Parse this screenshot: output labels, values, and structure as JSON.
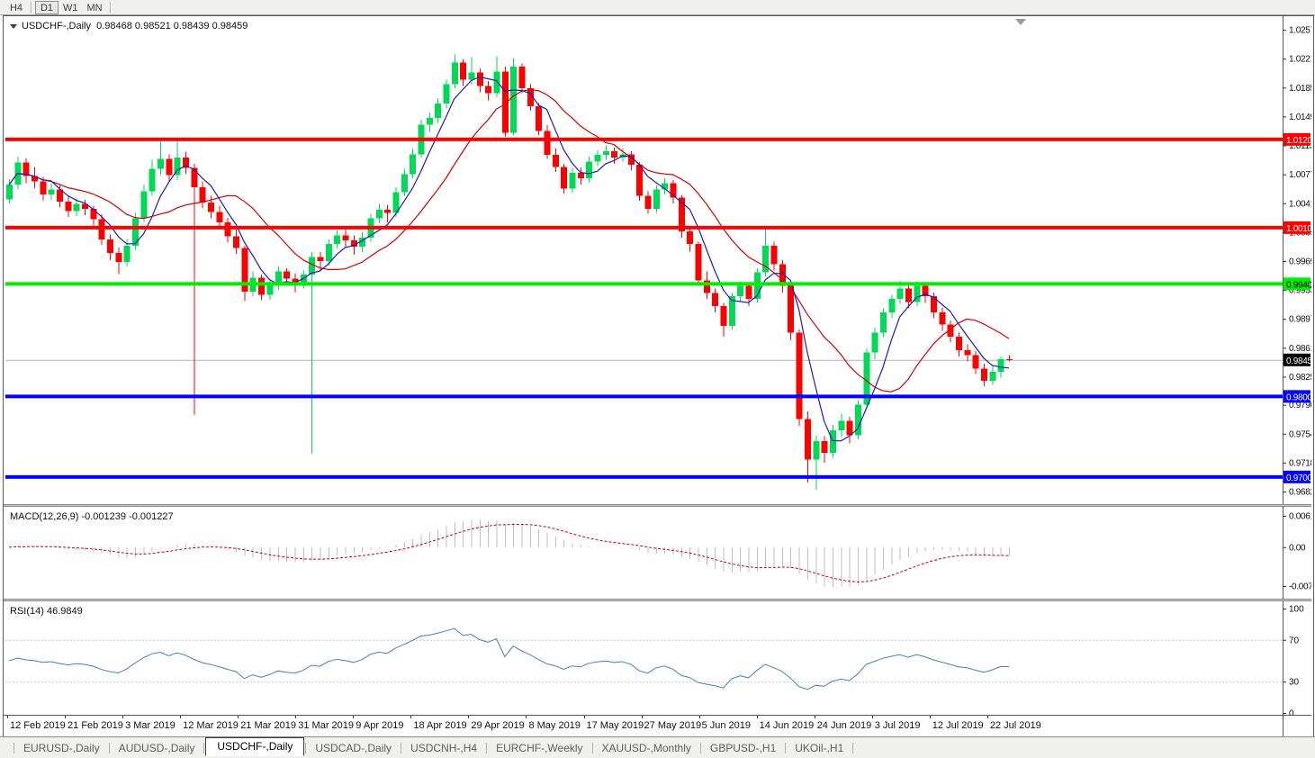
{
  "toolbar": {
    "timeframes": [
      "H4",
      "D1",
      "W1",
      "MN"
    ],
    "active": "D1"
  },
  "chart": {
    "title_line": "USDCHF-,Daily  0.98468 0.98521 0.98439 0.98459",
    "price_ticks": [
      "1.02570",
      "1.02210",
      "1.01850",
      "1.01490",
      "1.01130",
      "1.00770",
      "1.00410",
      "1.00050",
      "0.99690",
      "0.99330",
      "0.98970",
      "0.98610",
      "0.98250",
      "0.97900",
      "0.97540",
      "0.97180",
      "0.96820"
    ],
    "levels": [
      {
        "value": 1.01205,
        "label": "1.01205",
        "color": "#FF0000",
        "text_color": "#FFFFFF",
        "thickness": 4
      },
      {
        "value": 1.00106,
        "label": "1.00106",
        "color": "#FF0000",
        "text_color": "#FFFFFF",
        "thickness": 4
      },
      {
        "value": 0.99406,
        "label": "0.99406",
        "color": "#00EE00",
        "text_color": "#000000",
        "thickness": 4
      },
      {
        "value": 0.98004,
        "label": "0.98004",
        "color": "#0000FF",
        "text_color": "#FFFFFF",
        "thickness": 4
      },
      {
        "value": 0.97001,
        "label": "0.97001",
        "color": "#0000FF",
        "text_color": "#FFFFFF",
        "thickness": 4
      }
    ],
    "current_price": {
      "value": 0.98459,
      "label": "0.98459",
      "box_color": "#000000",
      "text_color": "#FFFFFF"
    },
    "dates": [
      "12 Feb 2019",
      "21 Feb 2019",
      "3 Mar 2019",
      "12 Mar 2019",
      "21 Mar 2019",
      "31 Mar 2019",
      "9 Apr 2019",
      "18 Apr 2019",
      "29 Apr 2019",
      "8 May 2019",
      "17 May 2019",
      "27 May 2019",
      "5 Jun 2019",
      "14 Jun 2019",
      "24 Jun 2019",
      "3 Jul 2019",
      "12 Jul 2019",
      "22 Jul 2019"
    ]
  },
  "macd": {
    "label_line": "MACD(12,26,9) -0.001239 -0.001227",
    "name": "MACD",
    "params": "12,26,9",
    "main_value": "-0.001239",
    "signal_value": "-0.001227",
    "axis_ticks": [
      "0.00613",
      "0.00",
      "-0.00761"
    ]
  },
  "rsi": {
    "label_line": "RSI(14) 46.9849",
    "name": "RSI",
    "period": "14",
    "value": "46.9849",
    "axis_ticks": [
      "100",
      "70",
      "30",
      "0"
    ],
    "levels": [
      70,
      30
    ]
  },
  "tabs": {
    "items": [
      "EURUSD-,Daily",
      "AUDUSD-,Daily",
      "USDCHF-,Daily",
      "USDCAD-,Daily",
      "USDCNH-,H4",
      "EURCHF-,Weekly",
      "XAUUSD-,Monthly",
      "GBPUSD-,H1",
      "UKOil-,H1"
    ],
    "active": "USDCHF-,Daily"
  },
  "colors": {
    "up_candle": "#00D957",
    "down_candle": "#FF0000",
    "ma_fast": "#1C1CB4",
    "ma_slow": "#D40000",
    "macd_hist": "#BDBDBD",
    "macd_signal": "#CC0000",
    "rsi_line": "#4682B4",
    "rsi_levels": "#C8C8C8",
    "current_price_line": "#B4B4B4",
    "axis_border": "#5a5a5a"
  },
  "chart_data": {
    "type": "candlestick",
    "symbol": "USDCHF-",
    "timeframe": "Daily",
    "title": "USDCHF-,Daily",
    "last_ohlc": {
      "open": "0.98468",
      "high": "0.98521",
      "low": "0.98439",
      "close": "0.98459"
    },
    "ylim": [
      0.96674,
      1.02728
    ],
    "x_range": [
      "12 Feb 2019",
      "22 Jul 2019"
    ],
    "candles": [
      [
        1.0046,
        1.0071,
        1.0041,
        1.0064
      ],
      [
        1.0064,
        1.0099,
        1.0058,
        1.0092
      ],
      [
        1.0092,
        1.0097,
        1.0066,
        1.0075
      ],
      [
        1.0075,
        1.0086,
        1.006,
        1.0068
      ],
      [
        1.0068,
        1.0074,
        1.0044,
        1.0052
      ],
      [
        1.0052,
        1.0066,
        1.0045,
        1.0058
      ],
      [
        1.0058,
        1.0063,
        1.0036,
        1.0043
      ],
      [
        1.0043,
        1.005,
        1.0024,
        1.0031
      ],
      [
        1.0031,
        1.0047,
        1.0025,
        1.004
      ],
      [
        1.004,
        1.0045,
        1.0026,
        1.0034
      ],
      [
        1.0034,
        1.0038,
        1.0013,
        1.0021
      ],
      [
        1.0021,
        1.0027,
        0.9989,
        0.9996
      ],
      [
        0.9996,
        1.0002,
        0.997,
        0.9979
      ],
      [
        0.9979,
        0.9986,
        0.9953,
        0.9968
      ],
      [
        0.9968,
        0.9996,
        0.9962,
        0.9988
      ],
      [
        0.9988,
        1.0029,
        0.9983,
        1.0022
      ],
      [
        1.0022,
        1.0064,
        1.0018,
        1.0056
      ],
      [
        1.0056,
        1.0095,
        1.005,
        1.0084
      ],
      [
        1.0084,
        1.01205,
        1.0076,
        1.0096
      ],
      [
        1.0096,
        1.0102,
        1.0068,
        1.0076
      ],
      [
        1.0076,
        1.012,
        1.007,
        1.0098
      ],
      [
        1.0098,
        1.0105,
        1.0078,
        1.0085
      ],
      [
        1.0085,
        1.009,
        0.9777,
        1.0061
      ],
      [
        1.0061,
        1.0068,
        1.0035,
        1.0042
      ],
      [
        1.0042,
        1.005,
        1.0022,
        1.003
      ],
      [
        1.003,
        1.0038,
        1.0009,
        1.0017
      ],
      [
        1.0017,
        1.0023,
        0.9992,
        1.0
      ],
      [
        1.0,
        1.0008,
        0.9978,
        0.9985
      ],
      [
        0.9985,
        0.9988,
        0.9919,
        0.9931
      ],
      [
        0.9931,
        0.9956,
        0.9925,
        0.9948
      ],
      [
        0.9948,
        0.9952,
        0.992,
        0.9927
      ],
      [
        0.9927,
        0.9946,
        0.9921,
        0.9939
      ],
      [
        0.9939,
        0.9962,
        0.9933,
        0.9956
      ],
      [
        0.9956,
        0.996,
        0.9938,
        0.9947
      ],
      [
        0.9947,
        0.9954,
        0.993,
        0.9941
      ],
      [
        0.9941,
        0.9958,
        0.9935,
        0.9952
      ],
      [
        0.9952,
        0.998,
        0.9729,
        0.9974
      ],
      [
        0.9974,
        0.998,
        0.9956,
        0.9969
      ],
      [
        0.9969,
        0.9996,
        0.9964,
        0.999
      ],
      [
        0.999,
        1.0007,
        0.9984,
        1.0001
      ],
      [
        1.0001,
        1.0008,
        0.9985,
        0.9995
      ],
      [
        0.9995,
        1.0001,
        0.9977,
        0.9987
      ],
      [
        0.9987,
        1.0005,
        0.998,
        0.9998
      ],
      [
        0.9998,
        1.0028,
        0.9993,
        1.0022
      ],
      [
        1.0022,
        1.004,
        1.0016,
        1.0033
      ],
      [
        1.0033,
        1.0039,
        1.0017,
        1.0029
      ],
      [
        1.0029,
        1.0061,
        1.0024,
        1.0055
      ],
      [
        1.0055,
        1.0084,
        1.005,
        1.0077
      ],
      [
        1.0077,
        1.0109,
        1.0072,
        1.0102
      ],
      [
        1.0102,
        1.0145,
        1.0098,
        1.0139
      ],
      [
        1.0139,
        1.0154,
        1.013,
        1.0147
      ],
      [
        1.0147,
        1.0172,
        1.0141,
        1.0165
      ],
      [
        1.0165,
        1.0195,
        1.0159,
        1.0189
      ],
      [
        1.0189,
        1.0226,
        1.0184,
        1.0216
      ],
      [
        1.0216,
        1.022,
        1.0187,
        1.0195
      ],
      [
        1.0195,
        1.0223,
        1.0189,
        1.0204
      ],
      [
        1.0204,
        1.0209,
        1.0179,
        1.0187
      ],
      [
        1.0187,
        1.0193,
        1.0169,
        1.0178
      ],
      [
        1.0178,
        1.0224,
        1.0173,
        1.0205
      ],
      [
        1.0205,
        1.0211,
        1.0124,
        1.0129
      ],
      [
        1.0129,
        1.0221,
        1.0126,
        1.0211
      ],
      [
        1.0211,
        1.0215,
        1.0178,
        1.0184
      ],
      [
        1.0184,
        1.0189,
        1.0156,
        1.0162
      ],
      [
        1.0162,
        1.0166,
        1.0126,
        1.0131
      ],
      [
        1.0131,
        1.0138,
        1.0096,
        1.0101
      ],
      [
        1.0101,
        1.0109,
        1.008,
        1.0086
      ],
      [
        1.0086,
        1.009,
        1.0053,
        1.0059
      ],
      [
        1.0059,
        1.0085,
        1.0054,
        1.0079
      ],
      [
        1.0079,
        1.0085,
        1.0064,
        1.0072
      ],
      [
        1.0072,
        1.0099,
        1.0067,
        1.0093
      ],
      [
        1.0093,
        1.0107,
        1.0087,
        1.0101
      ],
      [
        1.0101,
        1.0113,
        1.0095,
        1.0106
      ],
      [
        1.0106,
        1.011,
        1.009,
        1.0098
      ],
      [
        1.0098,
        1.0109,
        1.0093,
        1.0102
      ],
      [
        1.0102,
        1.0106,
        1.0082,
        1.0089
      ],
      [
        1.0089,
        1.0092,
        1.0044,
        1.005
      ],
      [
        1.005,
        1.0056,
        1.0028,
        1.0034
      ],
      [
        1.0034,
        1.0063,
        1.0029,
        1.0058
      ],
      [
        1.0058,
        1.0072,
        1.0052,
        1.0066
      ],
      [
        1.0066,
        1.007,
        1.0041,
        1.0048
      ],
      [
        1.0048,
        1.0051,
        0.9998,
        1.0006
      ],
      [
        1.0006,
        1.0012,
        0.9981,
        0.999
      ],
      [
        0.999,
        0.9993,
        0.9938,
        0.9945
      ],
      [
        0.9945,
        0.9956,
        0.9922,
        0.9929
      ],
      [
        0.9929,
        0.9935,
        0.9905,
        0.9913
      ],
      [
        0.9913,
        0.9917,
        0.9875,
        0.9888
      ],
      [
        0.9888,
        0.9929,
        0.9884,
        0.9925
      ],
      [
        0.9925,
        0.9943,
        0.9919,
        0.9938
      ],
      [
        0.9938,
        0.9942,
        0.9913,
        0.9922
      ],
      [
        0.9922,
        0.996,
        0.9917,
        0.9955
      ],
      [
        0.9955,
        1.0011,
        0.995,
        0.9988
      ],
      [
        0.9988,
        0.9993,
        0.9957,
        0.9965
      ],
      [
        0.9965,
        0.997,
        0.993,
        0.9938
      ],
      [
        0.9938,
        0.9942,
        0.9871,
        0.988
      ],
      [
        0.988,
        0.9884,
        0.9764,
        0.9772
      ],
      [
        0.9772,
        0.9782,
        0.9693,
        0.9722
      ],
      [
        0.9722,
        0.9752,
        0.9684,
        0.9745
      ],
      [
        0.9745,
        0.9751,
        0.9718,
        0.973
      ],
      [
        0.973,
        0.9765,
        0.9724,
        0.9758
      ],
      [
        0.9758,
        0.9779,
        0.975,
        0.977
      ],
      [
        0.977,
        0.9775,
        0.9742,
        0.9752
      ],
      [
        0.9752,
        0.9796,
        0.9747,
        0.979
      ],
      [
        0.979,
        0.986,
        0.9785,
        0.9855
      ],
      [
        0.9855,
        0.9886,
        0.9847,
        0.988
      ],
      [
        0.988,
        0.991,
        0.9874,
        0.9905
      ],
      [
        0.9905,
        0.9927,
        0.9898,
        0.9922
      ],
      [
        0.9922,
        0.9945,
        0.9916,
        0.9935
      ],
      [
        0.9935,
        0.994,
        0.991,
        0.9918
      ],
      [
        0.9918,
        0.9944,
        0.9913,
        0.9938
      ],
      [
        0.9938,
        0.9941,
        0.9917,
        0.9925
      ],
      [
        0.9925,
        0.993,
        0.9898,
        0.9905
      ],
      [
        0.9905,
        0.9911,
        0.9882,
        0.989
      ],
      [
        0.989,
        0.9895,
        0.9868,
        0.9875
      ],
      [
        0.9875,
        0.988,
        0.985,
        0.9858
      ],
      [
        0.9858,
        0.9865,
        0.9844,
        0.9852
      ],
      [
        0.9852,
        0.9857,
        0.9828,
        0.9835
      ],
      [
        0.9835,
        0.9841,
        0.9813,
        0.982
      ],
      [
        0.982,
        0.9839,
        0.9815,
        0.9831
      ],
      [
        0.9831,
        0.985,
        0.9824,
        0.98468
      ],
      [
        0.98468,
        0.98521,
        0.98439,
        0.98459
      ]
    ]
  }
}
